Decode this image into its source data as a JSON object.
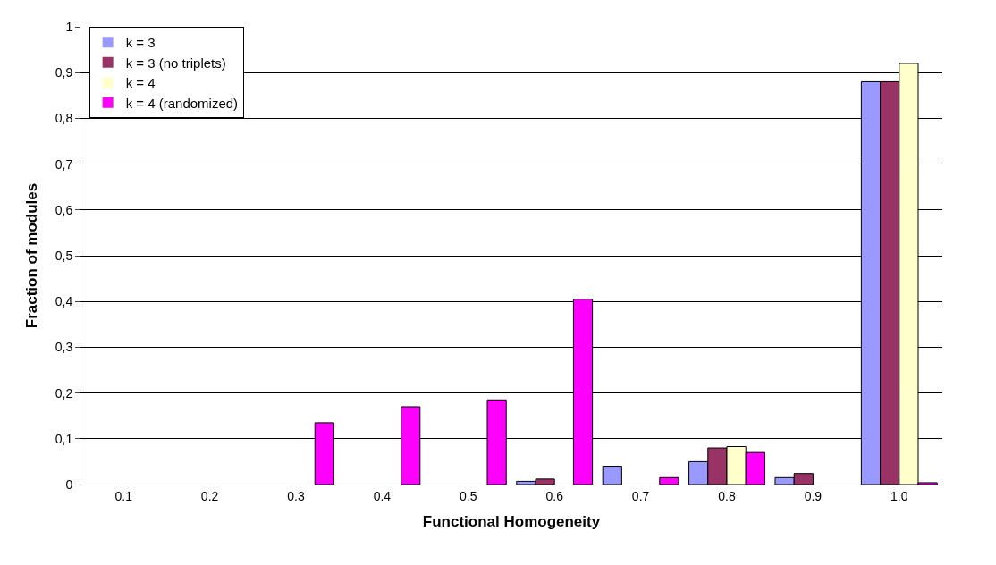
{
  "chart_data": {
    "type": "bar",
    "xlabel": "Functional Homogeneity",
    "ylabel": "Fraction of modules",
    "categories": [
      "0.1",
      "0.2",
      "0.3",
      "0.4",
      "0.5",
      "0.6",
      "0.7",
      "0.8",
      "0.9",
      "1.0"
    ],
    "series": [
      {
        "name": "k = 3",
        "color": "#9999ff",
        "values": [
          0,
          0,
          0,
          0,
          0,
          0.007,
          0.04,
          0.05,
          0.015,
          0.88
        ]
      },
      {
        "name": "k = 3 (no triplets)",
        "color": "#993366",
        "values": [
          0,
          0,
          0,
          0,
          0,
          0.012,
          0,
          0.08,
          0.024,
          0.88
        ]
      },
      {
        "name": "k = 4",
        "color": "#ffffcc",
        "values": [
          0,
          0,
          0,
          0,
          0,
          0,
          0,
          0.083,
          0,
          0.92
        ]
      },
      {
        "name": "k = 4 (randomized)",
        "color": "#ff00ff",
        "values": [
          0,
          0,
          0.135,
          0.17,
          0.185,
          0.405,
          0.015,
          0.07,
          0,
          0.004
        ]
      }
    ],
    "ylim": [
      0,
      1
    ],
    "yticks": [
      0,
      {
        "value": 0.1,
        "label": "0,1"
      },
      {
        "value": 0.2,
        "label": "0,2"
      },
      {
        "value": 0.3,
        "label": "0,3"
      },
      {
        "value": 0.4,
        "label": "0,4"
      },
      {
        "value": 0.5,
        "label": "0,5"
      },
      {
        "value": 0.6,
        "label": "0,6"
      },
      {
        "value": 0.7,
        "label": "0,7"
      },
      {
        "value": 0.8,
        "label": "0,8"
      },
      {
        "value": 0.9,
        "label": "0,9"
      },
      1
    ],
    "grid": "y",
    "legend": "top left"
  }
}
